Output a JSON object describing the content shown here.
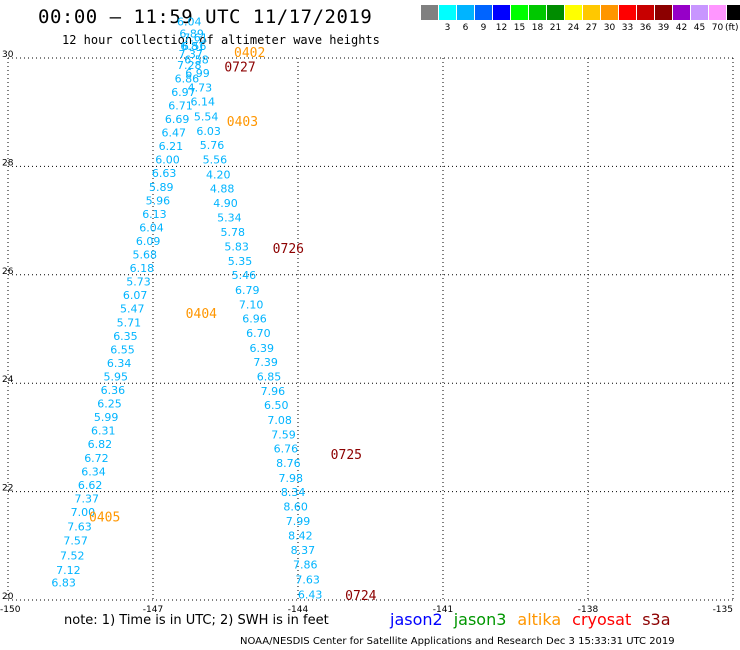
{
  "header": {
    "title": "00:00 – 11:59 UTC 11/17/2019",
    "subtitle": "12 hour collection of altimeter wave heights"
  },
  "legend": {
    "unit": "(ft)",
    "items": [
      {
        "label": "",
        "color": "#808080"
      },
      {
        "label": "3",
        "color": "#00ffff"
      },
      {
        "label": "6",
        "color": "#00b4ff"
      },
      {
        "label": "9",
        "color": "#0064ff"
      },
      {
        "label": "12",
        "color": "#0000ff"
      },
      {
        "label": "15",
        "color": "#00ff00"
      },
      {
        "label": "18",
        "color": "#00c800"
      },
      {
        "label": "21",
        "color": "#008c00"
      },
      {
        "label": "24",
        "color": "#ffff00"
      },
      {
        "label": "27",
        "color": "#ffc800"
      },
      {
        "label": "30",
        "color": "#ff9600"
      },
      {
        "label": "33",
        "color": "#ff0000"
      },
      {
        "label": "36",
        "color": "#c80000"
      },
      {
        "label": "39",
        "color": "#8c0000"
      },
      {
        "label": "42",
        "color": "#9600c8"
      },
      {
        "label": "45",
        "color": "#c896ff"
      },
      {
        "label": "70",
        "color": "#ff96ff"
      },
      {
        "label": "",
        "color": "#000000"
      }
    ]
  },
  "footer": {
    "note": "note:  1) Time is in UTC;  2) SWH is in feet",
    "credit": "NOAA/NESDIS Center for Satellite Applications and Research     Dec  3 15:33:31 UTC 2019"
  },
  "satellites": [
    {
      "name": "jason2",
      "color": "#0000ff"
    },
    {
      "name": "jason3",
      "color": "#009600"
    },
    {
      "name": "altika",
      "color": "#ff9600"
    },
    {
      "name": "cryosat",
      "color": "#ff0000"
    },
    {
      "name": "s3a",
      "color": "#8c0000"
    }
  ],
  "chart_data": {
    "type": "scatter",
    "xlim": [
      -150,
      -135
    ],
    "ylim": [
      20,
      30
    ],
    "x_ticks": [
      "-150",
      "-147",
      "-144",
      "-141",
      "-138",
      "-135"
    ],
    "y_ticks": [
      "20",
      "22",
      "24",
      "26",
      "28",
      "30"
    ],
    "grid": true,
    "value_color": "#00b4ff",
    "time_color_altika": "#ff9600",
    "time_color_s3a": "#8c0000",
    "tracks": [
      {
        "name": "altika",
        "points": [
          {
            "lon": -148.85,
            "lat": 20.25,
            "v": "6.83"
          },
          {
            "lon": -148.75,
            "lat": 20.48,
            "v": "7.12"
          },
          {
            "lon": -148.67,
            "lat": 20.75,
            "v": "7.52"
          },
          {
            "lon": -148.6,
            "lat": 21.02,
            "v": "7.57"
          },
          {
            "lon": -148.52,
            "lat": 21.28,
            "v": "7.63"
          },
          {
            "lon": -148.45,
            "lat": 21.55,
            "v": "7.00"
          },
          {
            "lon": -148.37,
            "lat": 21.8,
            "v": "7.37"
          },
          {
            "lon": -148.3,
            "lat": 22.05,
            "v": "6.62"
          },
          {
            "lon": -148.23,
            "lat": 22.3,
            "v": "6.34"
          },
          {
            "lon": -148.17,
            "lat": 22.55,
            "v": "6.72"
          },
          {
            "lon": -148.1,
            "lat": 22.8,
            "v": "6.82"
          },
          {
            "lon": -148.03,
            "lat": 23.05,
            "v": "6.31"
          },
          {
            "lon": -147.97,
            "lat": 23.3,
            "v": "5.99"
          },
          {
            "lon": -147.9,
            "lat": 23.55,
            "v": "6.25"
          },
          {
            "lon": -147.83,
            "lat": 23.8,
            "v": "6.36"
          },
          {
            "lon": -147.77,
            "lat": 24.05,
            "v": "5.95"
          },
          {
            "lon": -147.7,
            "lat": 24.3,
            "v": "6.34"
          },
          {
            "lon": -147.63,
            "lat": 24.55,
            "v": "6.55"
          },
          {
            "lon": -147.57,
            "lat": 24.8,
            "v": "6.35"
          },
          {
            "lon": -147.5,
            "lat": 25.05,
            "v": "5.71"
          },
          {
            "lon": -147.43,
            "lat": 25.3,
            "v": "5.47"
          },
          {
            "lon": -147.37,
            "lat": 25.55,
            "v": "6.07"
          },
          {
            "lon": -147.3,
            "lat": 25.8,
            "v": "5.73"
          },
          {
            "lon": -147.23,
            "lat": 26.05,
            "v": "6.18"
          },
          {
            "lon": -147.17,
            "lat": 26.3,
            "v": "5.68"
          },
          {
            "lon": -147.1,
            "lat": 26.55,
            "v": "6.09"
          },
          {
            "lon": -147.03,
            "lat": 26.8,
            "v": "6.04"
          },
          {
            "lon": -146.97,
            "lat": 27.05,
            "v": "6.13"
          },
          {
            "lon": -146.9,
            "lat": 27.3,
            "v": "5.96"
          },
          {
            "lon": -146.83,
            "lat": 27.55,
            "v": "5.89"
          },
          {
            "lon": -146.77,
            "lat": 27.8,
            "v": "6.63"
          },
          {
            "lon": -146.7,
            "lat": 28.05,
            "v": "6.00"
          },
          {
            "lon": -146.63,
            "lat": 28.3,
            "v": "6.21"
          },
          {
            "lon": -146.57,
            "lat": 28.55,
            "v": "6.47"
          },
          {
            "lon": -146.5,
            "lat": 28.8,
            "v": "6.69"
          },
          {
            "lon": -146.43,
            "lat": 29.05,
            "v": "6.71"
          },
          {
            "lon": -146.37,
            "lat": 29.3,
            "v": "6.97"
          },
          {
            "lon": -146.3,
            "lat": 29.55,
            "v": "6.86"
          },
          {
            "lon": -146.25,
            "lat": 29.8,
            "v": "7.28"
          },
          {
            "lon": -146.22,
            "lat": 30.0,
            "v": "7.37"
          },
          {
            "lon": -146.18,
            "lat": 30.15,
            "v": "6.81"
          },
          {
            "lon": -146.12,
            "lat": 30.3,
            "v": "7.61"
          }
        ],
        "times": [
          {
            "lon": -148.0,
            "lat": 21.45,
            "t": "0405"
          },
          {
            "lon": -146.0,
            "lat": 25.2,
            "t": "0404"
          },
          {
            "lon": -145.15,
            "lat": 28.75,
            "t": "0403"
          },
          {
            "lon": -145.0,
            "lat": 30.02,
            "t": "0402"
          }
        ]
      },
      {
        "name": "s3a",
        "points": [
          {
            "lon": -143.75,
            "lat": 20.03,
            "v": "6.43"
          },
          {
            "lon": -143.8,
            "lat": 20.3,
            "v": "7.63"
          },
          {
            "lon": -143.85,
            "lat": 20.58,
            "v": "7.86"
          },
          {
            "lon": -143.9,
            "lat": 20.85,
            "v": "8.37"
          },
          {
            "lon": -143.95,
            "lat": 21.12,
            "v": "8.42"
          },
          {
            "lon": -144.0,
            "lat": 21.38,
            "v": "7.99"
          },
          {
            "lon": -144.05,
            "lat": 21.65,
            "v": "8.60"
          },
          {
            "lon": -144.1,
            "lat": 21.92,
            "v": "8.34"
          },
          {
            "lon": -144.15,
            "lat": 22.18,
            "v": "7.98"
          },
          {
            "lon": -144.2,
            "lat": 22.45,
            "v": "8.76"
          },
          {
            "lon": -144.25,
            "lat": 22.72,
            "v": "6.76"
          },
          {
            "lon": -144.3,
            "lat": 22.98,
            "v": "7.59"
          },
          {
            "lon": -144.38,
            "lat": 23.25,
            "v": "7.08"
          },
          {
            "lon": -144.45,
            "lat": 23.52,
            "v": "6.50"
          },
          {
            "lon": -144.52,
            "lat": 23.78,
            "v": "7.96"
          },
          {
            "lon": -144.6,
            "lat": 24.05,
            "v": "6.85"
          },
          {
            "lon": -144.67,
            "lat": 24.32,
            "v": "7.39"
          },
          {
            "lon": -144.75,
            "lat": 24.58,
            "v": "6.39"
          },
          {
            "lon": -144.82,
            "lat": 24.85,
            "v": "6.70"
          },
          {
            "lon": -144.9,
            "lat": 25.12,
            "v": "6.96"
          },
          {
            "lon": -144.97,
            "lat": 25.38,
            "v": "7.10"
          },
          {
            "lon": -145.05,
            "lat": 25.65,
            "v": "6.79"
          },
          {
            "lon": -145.12,
            "lat": 25.92,
            "v": "5.46"
          },
          {
            "lon": -145.2,
            "lat": 26.18,
            "v": "5.35"
          },
          {
            "lon": -145.27,
            "lat": 26.45,
            "v": "5.83"
          },
          {
            "lon": -145.35,
            "lat": 26.72,
            "v": "5.78"
          },
          {
            "lon": -145.42,
            "lat": 26.98,
            "v": "5.34"
          },
          {
            "lon": -145.5,
            "lat": 27.25,
            "v": "4.90"
          },
          {
            "lon": -145.57,
            "lat": 27.52,
            "v": "4.88"
          },
          {
            "lon": -145.65,
            "lat": 27.78,
            "v": "4.20"
          },
          {
            "lon": -145.72,
            "lat": 28.05,
            "v": "5.56"
          },
          {
            "lon": -145.78,
            "lat": 28.32,
            "v": "5.76"
          },
          {
            "lon": -145.85,
            "lat": 28.58,
            "v": "6.03"
          },
          {
            "lon": -145.9,
            "lat": 28.85,
            "v": "5.54"
          },
          {
            "lon": -145.97,
            "lat": 29.12,
            "v": "6.14"
          },
          {
            "lon": -146.03,
            "lat": 29.38,
            "v": "4.73"
          },
          {
            "lon": -146.08,
            "lat": 29.65,
            "v": "6.99"
          },
          {
            "lon": -146.1,
            "lat": 29.9,
            "v": "6.58"
          },
          {
            "lon": -146.15,
            "lat": 30.15,
            "v": "6.56"
          },
          {
            "lon": -146.2,
            "lat": 30.38,
            "v": "6.89"
          },
          {
            "lon": -146.25,
            "lat": 30.6,
            "v": "6.04"
          }
        ],
        "times": [
          {
            "lon": -142.7,
            "lat": 20.0,
            "t": "0724"
          },
          {
            "lon": -143.0,
            "lat": 22.6,
            "t": "0725"
          },
          {
            "lon": -144.2,
            "lat": 26.4,
            "t": "0726"
          },
          {
            "lon": -145.2,
            "lat": 29.75,
            "t": "0727"
          }
        ]
      }
    ]
  }
}
